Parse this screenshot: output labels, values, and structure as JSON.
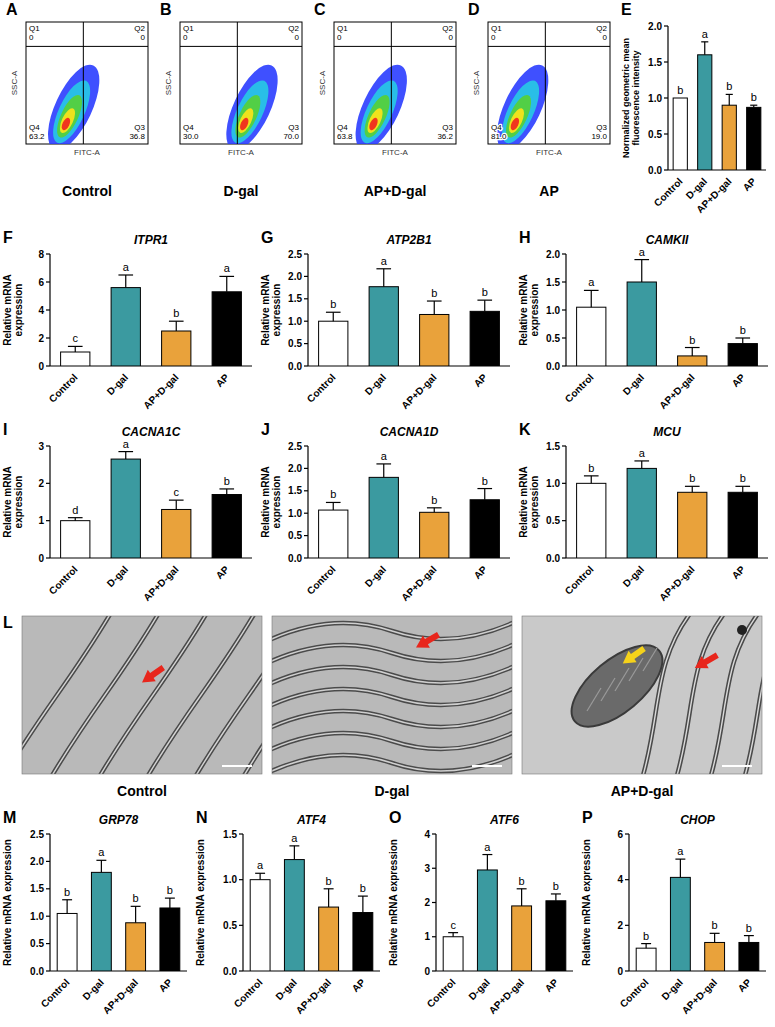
{
  "chart_data": [
    {
      "type": "quadrant",
      "panel_label": "A",
      "title": "Control",
      "x_label": "FITC-A",
      "y_label": "SSC-A",
      "categories": [
        "Q1",
        "Q2",
        "Q3",
        "Q4"
      ],
      "values": [
        0,
        0,
        36.8,
        63.2
      ],
      "value_labels": [
        "0",
        "0",
        "36.8",
        "63.2"
      ],
      "tick_labels": false
    },
    {
      "type": "quadrant",
      "panel_label": "B",
      "title": "D-gal",
      "x_label": "FITC-A",
      "y_label": "SSC-A",
      "categories": [
        "Q1",
        "Q2",
        "Q3",
        "Q4"
      ],
      "values": [
        0,
        0,
        70.0,
        30.0
      ],
      "value_labels": [
        "0",
        "0",
        "70.0",
        "30.0"
      ],
      "tick_labels": false
    },
    {
      "type": "quadrant",
      "panel_label": "C",
      "title": "AP+D-gal",
      "x_label": "FITC-A",
      "y_label": "SSC-A",
      "categories": [
        "Q1",
        "Q2",
        "Q3",
        "Q4"
      ],
      "values": [
        0,
        0,
        36.2,
        63.8
      ],
      "value_labels": [
        "0",
        "0",
        "36.2",
        "63.8"
      ],
      "tick_labels": false
    },
    {
      "type": "quadrant",
      "panel_label": "D",
      "title": "AP",
      "x_label": "FITC-A",
      "y_label": "SSC-A",
      "categories": [
        "Q1",
        "Q2",
        "Q3",
        "Q4"
      ],
      "values": [
        0,
        0,
        19.0,
        81.0
      ],
      "value_labels": [
        "0",
        "0",
        "19.0",
        "81.0"
      ],
      "tick_labels": false
    },
    {
      "type": "bar",
      "panel_label": "E",
      "y_label": "Normalized geometric mean fluorescence intensity",
      "categories": [
        "Control",
        "D-gal",
        "AP+D-gal",
        "AP"
      ],
      "values": [
        1.0,
        1.6,
        0.9,
        0.87
      ],
      "errors": [
        0,
        0.18,
        0.15,
        0.03
      ],
      "letters": [
        "b",
        "a",
        "b",
        "b"
      ],
      "colors": [
        "#ffffff",
        "#3b9aa0",
        "#e9a23b",
        "#000000"
      ],
      "ylim": [
        0,
        2
      ],
      "yticks": [
        {
          "value": 0,
          "label": "0.0"
        },
        {
          "value": 0.5,
          "label": "0.5"
        },
        {
          "value": 1,
          "label": "1.0"
        },
        {
          "value": 1.5,
          "label": "1.5"
        },
        {
          "value": 2,
          "label": "2.0"
        }
      ]
    },
    {
      "type": "bar",
      "panel_label": "F",
      "title": "ITPR1",
      "y_label": "Relative mRNA expression",
      "categories": [
        "Control",
        "D-gal",
        "AP+D-gal",
        "AP"
      ],
      "values": [
        1.0,
        5.6,
        2.5,
        5.3
      ],
      "errors": [
        0.4,
        0.9,
        0.7,
        1.1
      ],
      "letters": [
        "c",
        "a",
        "b",
        "a"
      ],
      "colors": [
        "#ffffff",
        "#3b9aa0",
        "#e9a23b",
        "#000000"
      ],
      "ylim": [
        0,
        8
      ],
      "yticks": [
        0,
        2,
        4,
        6,
        8
      ]
    },
    {
      "type": "bar",
      "panel_label": "G",
      "title": "ATP2B1",
      "y_label": "Relative mRNA expression",
      "categories": [
        "Control",
        "D-gal",
        "AP+D-gal",
        "AP"
      ],
      "values": [
        1.0,
        1.77,
        1.15,
        1.22
      ],
      "errors": [
        0.2,
        0.4,
        0.3,
        0.25
      ],
      "letters": [
        "b",
        "a",
        "b",
        "b"
      ],
      "colors": [
        "#ffffff",
        "#3b9aa0",
        "#e9a23b",
        "#000000"
      ],
      "ylim": [
        0,
        2.5
      ],
      "yticks": [
        {
          "value": 0,
          "label": "0.0"
        },
        {
          "value": 0.5,
          "label": "0.5"
        },
        {
          "value": 1,
          "label": "1.0"
        },
        {
          "value": 1.5,
          "label": "1.5"
        },
        {
          "value": 2,
          "label": "2.0"
        },
        {
          "value": 2.5,
          "label": "2.5"
        }
      ]
    },
    {
      "type": "bar",
      "panel_label": "H",
      "title": "CAMKII",
      "y_label": "Relative mRNA expression",
      "categories": [
        "Control",
        "D-gal",
        "AP+D-gal",
        "AP"
      ],
      "values": [
        1.05,
        1.5,
        0.18,
        0.4
      ],
      "errors": [
        0.3,
        0.4,
        0.15,
        0.1
      ],
      "letters": [
        "a",
        "a",
        "b",
        "b"
      ],
      "colors": [
        "#ffffff",
        "#3b9aa0",
        "#e9a23b",
        "#000000"
      ],
      "ylim": [
        0,
        2
      ],
      "yticks": [
        {
          "value": 0,
          "label": "0.0"
        },
        {
          "value": 0.5,
          "label": "0.5"
        },
        {
          "value": 1,
          "label": "1.0"
        },
        {
          "value": 1.5,
          "label": "1.5"
        },
        {
          "value": 2,
          "label": "2.0"
        }
      ]
    },
    {
      "type": "bar",
      "panel_label": "I",
      "title": "CACNA1C",
      "y_label": "Relative mRNA expression",
      "categories": [
        "Control",
        "D-gal",
        "AP+D-gal",
        "AP"
      ],
      "values": [
        1.0,
        2.65,
        1.3,
        1.7
      ],
      "errors": [
        0.08,
        0.2,
        0.25,
        0.15
      ],
      "letters": [
        "d",
        "a",
        "c",
        "b"
      ],
      "colors": [
        "#ffffff",
        "#3b9aa0",
        "#e9a23b",
        "#000000"
      ],
      "ylim": [
        0,
        3
      ],
      "yticks": [
        0,
        1,
        2,
        3
      ]
    },
    {
      "type": "bar",
      "panel_label": "J",
      "title": "CACNA1D",
      "y_label": "Relative mRNA expression",
      "categories": [
        "Control",
        "D-gal",
        "AP+D-gal",
        "AP"
      ],
      "values": [
        1.07,
        1.8,
        1.02,
        1.3
      ],
      "errors": [
        0.17,
        0.3,
        0.1,
        0.25
      ],
      "letters": [
        "b",
        "a",
        "b",
        "b"
      ],
      "colors": [
        "#ffffff",
        "#3b9aa0",
        "#e9a23b",
        "#000000"
      ],
      "ylim": [
        0,
        2.5
      ],
      "yticks": [
        {
          "value": 0,
          "label": "0.0"
        },
        {
          "value": 0.5,
          "label": "0.5"
        },
        {
          "value": 1,
          "label": "1.0"
        },
        {
          "value": 1.5,
          "label": "1.5"
        },
        {
          "value": 2,
          "label": "2.0"
        },
        {
          "value": 2.5,
          "label": "2.5"
        }
      ]
    },
    {
      "type": "bar",
      "panel_label": "K",
      "title": "MCU",
      "y_label": "Relative mRNA expression",
      "categories": [
        "Control",
        "D-gal",
        "AP+D-gal",
        "AP"
      ],
      "values": [
        1.0,
        1.2,
        0.88,
        0.88
      ],
      "errors": [
        0.1,
        0.1,
        0.08,
        0.08
      ],
      "letters": [
        "b",
        "a",
        "b",
        "b"
      ],
      "colors": [
        "#ffffff",
        "#3b9aa0",
        "#e9a23b",
        "#000000"
      ],
      "ylim": [
        0,
        1.5
      ],
      "yticks": [
        {
          "value": 0,
          "label": "0.0"
        },
        {
          "value": 0.5,
          "label": "0.5"
        },
        {
          "value": 1,
          "label": "1.0"
        },
        {
          "value": 1.5,
          "label": "1.5"
        }
      ]
    },
    {
      "type": "image",
      "panel_label": "L",
      "captions": [
        "Control",
        "D-gal",
        "AP+D-gal"
      ]
    },
    {
      "type": "bar",
      "panel_label": "M",
      "title": "GRP78",
      "y_label": "Relative mRNA expression",
      "categories": [
        "Control",
        "D-gal",
        "AP+D-gal",
        "AP"
      ],
      "values": [
        1.05,
        1.8,
        0.88,
        1.15
      ],
      "errors": [
        0.25,
        0.22,
        0.3,
        0.18
      ],
      "letters": [
        "b",
        "a",
        "b",
        "b"
      ],
      "colors": [
        "#ffffff",
        "#3b9aa0",
        "#e9a23b",
        "#000000"
      ],
      "ylim": [
        0,
        2.5
      ],
      "yticks": [
        {
          "value": 0,
          "label": "0.0"
        },
        {
          "value": 0.5,
          "label": "0.5"
        },
        {
          "value": 1,
          "label": "1.0"
        },
        {
          "value": 1.5,
          "label": "1.5"
        },
        {
          "value": 2,
          "label": "2.0"
        },
        {
          "value": 2.5,
          "label": "2.5"
        }
      ]
    },
    {
      "type": "bar",
      "panel_label": "N",
      "title": "ATF4",
      "y_label": "Relative mRNA expression",
      "categories": [
        "Control",
        "D-gal",
        "AP+D-gal",
        "AP"
      ],
      "values": [
        1.0,
        1.22,
        0.7,
        0.64
      ],
      "errors": [
        0.07,
        0.15,
        0.2,
        0.18
      ],
      "letters": [
        "a",
        "a",
        "b",
        "b"
      ],
      "colors": [
        "#ffffff",
        "#3b9aa0",
        "#e9a23b",
        "#000000"
      ],
      "ylim": [
        0,
        1.5
      ],
      "yticks": [
        {
          "value": 0,
          "label": "0.0"
        },
        {
          "value": 0.5,
          "label": "0.5"
        },
        {
          "value": 1,
          "label": "1.0"
        },
        {
          "value": 1.5,
          "label": "1.5"
        }
      ]
    },
    {
      "type": "bar",
      "panel_label": "O",
      "title": "ATF6",
      "y_label": "Relative mRNA expression",
      "categories": [
        "Control",
        "D-gal",
        "AP+D-gal",
        "AP"
      ],
      "values": [
        1.0,
        2.95,
        1.9,
        2.05
      ],
      "errors": [
        0.12,
        0.45,
        0.5,
        0.2
      ],
      "letters": [
        "c",
        "a",
        "b",
        "b"
      ],
      "colors": [
        "#ffffff",
        "#3b9aa0",
        "#e9a23b",
        "#000000"
      ],
      "ylim": [
        0,
        4
      ],
      "yticks": [
        0,
        1,
        2,
        3,
        4
      ]
    },
    {
      "type": "bar",
      "panel_label": "P",
      "title": "CHOP",
      "y_label": "Relative mRNA expression",
      "categories": [
        "Control",
        "D-gal",
        "AP+D-gal",
        "AP"
      ],
      "values": [
        1.0,
        4.1,
        1.25,
        1.25
      ],
      "errors": [
        0.2,
        0.8,
        0.4,
        0.3
      ],
      "letters": [
        "b",
        "a",
        "b",
        "b"
      ],
      "colors": [
        "#ffffff",
        "#3b9aa0",
        "#e9a23b",
        "#000000"
      ],
      "ylim": [
        0,
        6
      ],
      "yticks": [
        0,
        2,
        4,
        6
      ]
    }
  ]
}
